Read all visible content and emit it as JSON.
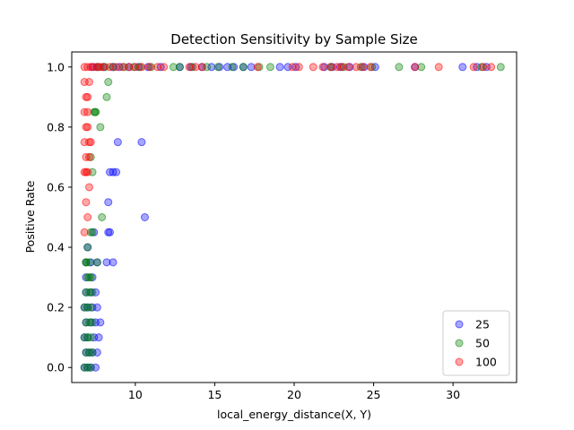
{
  "chart_data": {
    "type": "scatter",
    "title": "Detection Sensitivity by Sample Size",
    "xlabel": "local_energy_distance(X, Y)",
    "ylabel": "Positive Rate",
    "xlim": [
      6.0,
      34.0
    ],
    "ylim": [
      -0.05,
      1.05
    ],
    "xticks": [
      10,
      15,
      20,
      25,
      30
    ],
    "yticks": [
      0.0,
      0.2,
      0.4,
      0.6,
      0.8,
      1.0
    ],
    "xtick_labels": [
      "10",
      "15",
      "20",
      "25",
      "30"
    ],
    "ytick_labels": [
      "0.0",
      "0.2",
      "0.4",
      "0.6",
      "0.8",
      "1.0"
    ],
    "legend_position": "lower-right",
    "grid": false,
    "series": [
      {
        "name": "25",
        "color": "#0000ff",
        "x": [
          6.8,
          7.0,
          7.2,
          7.5,
          6.9,
          7.1,
          7.3,
          7.6,
          6.8,
          7.0,
          7.4,
          7.7,
          6.9,
          7.2,
          7.5,
          7.8,
          6.8,
          7.0,
          7.3,
          7.6,
          6.9,
          7.2,
          7.5,
          6.9,
          7.3,
          7.6,
          6.9,
          7.2,
          7.0,
          7.4,
          8.3,
          8.6,
          8.2,
          8.4,
          8.3,
          10.6,
          8.4,
          8.6,
          8.8,
          8.9,
          10.4,
          7.3,
          7.6,
          8.0,
          8.6,
          9.0,
          9.6,
          10.2,
          10.8,
          11.6,
          12.8,
          13.5,
          14.2,
          14.8,
          15.3,
          15.8,
          16.2,
          16.8,
          17.3,
          19.1,
          19.6,
          20.1,
          21.9,
          22.4,
          22.9,
          23.5,
          24.4,
          25.1,
          27.6,
          30.6,
          31.5,
          32.1
        ],
        "y": [
          0.0,
          0.0,
          0.0,
          0.0,
          0.05,
          0.05,
          0.05,
          0.05,
          0.1,
          0.1,
          0.1,
          0.1,
          0.15,
          0.15,
          0.15,
          0.15,
          0.2,
          0.2,
          0.2,
          0.2,
          0.25,
          0.25,
          0.25,
          0.3,
          0.3,
          0.35,
          0.35,
          0.35,
          0.4,
          0.45,
          0.45,
          0.35,
          0.35,
          0.45,
          0.55,
          0.5,
          0.65,
          0.65,
          0.65,
          0.75,
          0.75,
          1.0,
          1.0,
          1.0,
          1.0,
          1.0,
          1.0,
          1.0,
          1.0,
          1.0,
          1.0,
          1.0,
          1.0,
          1.0,
          1.0,
          1.0,
          1.0,
          1.0,
          1.0,
          1.0,
          1.0,
          1.0,
          1.0,
          1.0,
          1.0,
          1.0,
          1.0,
          1.0,
          1.0,
          1.0,
          1.0,
          1.0
        ]
      },
      {
        "name": "50",
        "color": "#008000",
        "x": [
          6.8,
          7.0,
          7.2,
          6.9,
          7.1,
          7.3,
          6.8,
          7.0,
          7.2,
          6.9,
          7.1,
          7.3,
          6.8,
          7.0,
          7.2,
          6.9,
          7.1,
          7.3,
          7.0,
          7.2,
          6.9,
          7.1,
          7.3,
          7.0,
          7.2,
          6.9,
          7.1,
          7.6,
          7.3,
          7.2,
          7.9,
          7.5,
          7.4,
          7.8,
          7.5,
          8.2,
          8.3,
          7.7,
          8.1,
          8.6,
          9.3,
          9.9,
          10.3,
          11.0,
          12.4,
          12.8,
          13.6,
          14.5,
          15.2,
          16.1,
          16.8,
          17.8,
          18.5,
          22.3,
          23.1,
          24.2,
          24.9,
          26.6,
          28.0,
          31.8,
          33.0
        ],
        "y": [
          0.0,
          0.0,
          0.0,
          0.05,
          0.05,
          0.05,
          0.1,
          0.1,
          0.1,
          0.15,
          0.15,
          0.15,
          0.2,
          0.2,
          0.2,
          0.25,
          0.25,
          0.25,
          0.3,
          0.3,
          0.35,
          0.35,
          0.45,
          0.4,
          0.45,
          0.35,
          0.3,
          0.35,
          0.65,
          0.7,
          0.5,
          0.85,
          0.85,
          0.8,
          0.85,
          0.9,
          0.95,
          1.0,
          1.0,
          1.0,
          1.0,
          1.0,
          1.0,
          1.0,
          1.0,
          1.0,
          1.0,
          1.0,
          1.0,
          1.0,
          1.0,
          1.0,
          1.0,
          1.0,
          1.0,
          1.0,
          1.0,
          1.0,
          1.0,
          1.0,
          1.0
        ]
      },
      {
        "name": "100",
        "color": "#ff0000",
        "x": [
          6.8,
          7.0,
          6.9,
          7.1,
          6.8,
          7.0,
          6.9,
          7.1,
          6.8,
          7.0,
          6.9,
          7.2,
          6.8,
          7.0,
          6.9,
          7.1,
          6.8,
          7.0,
          6.9,
          7.1,
          6.8,
          7.0,
          7.2,
          7.4,
          7.6,
          7.8,
          8.0,
          8.4,
          8.8,
          9.2,
          9.6,
          10.0,
          10.4,
          10.9,
          11.4,
          11.8,
          13.4,
          13.8,
          14.2,
          17.7,
          19.9,
          20.3,
          21.2,
          21.8,
          22.3,
          22.7,
          23.0,
          23.4,
          23.9,
          24.3,
          24.8,
          27.6,
          29.1,
          31.3,
          31.9,
          32.4
        ],
        "y": [
          0.45,
          0.5,
          0.55,
          0.6,
          0.65,
          0.65,
          0.7,
          0.75,
          0.75,
          0.8,
          0.8,
          0.75,
          0.85,
          0.85,
          0.9,
          0.95,
          0.95,
          0.9,
          0.65,
          0.7,
          1.0,
          1.0,
          1.0,
          1.0,
          1.0,
          1.0,
          1.0,
          1.0,
          1.0,
          1.0,
          1.0,
          1.0,
          1.0,
          1.0,
          1.0,
          1.0,
          1.0,
          1.0,
          1.0,
          1.0,
          1.0,
          1.0,
          1.0,
          1.0,
          1.0,
          1.0,
          1.0,
          1.0,
          1.0,
          1.0,
          1.0,
          1.0,
          1.0,
          1.0,
          1.0,
          1.0
        ]
      }
    ]
  }
}
